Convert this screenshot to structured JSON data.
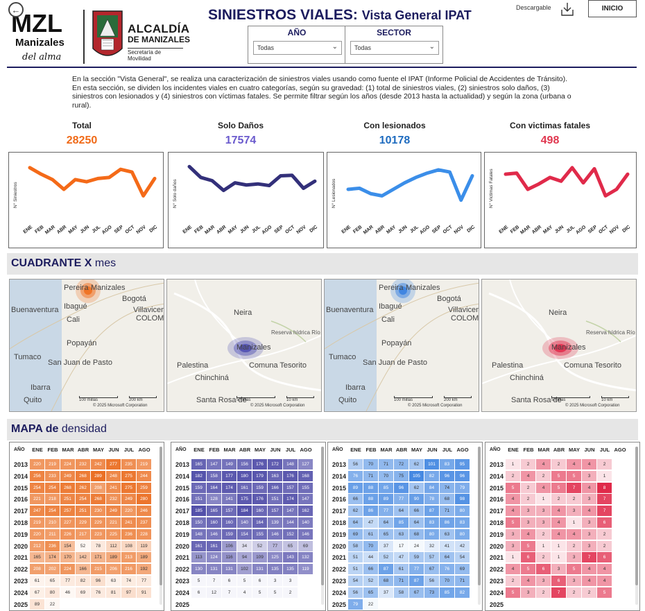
{
  "header": {
    "back_label": "←",
    "logo_mzl": "MZL",
    "logo_manizales": "Manizales",
    "logo_tagline": "del alma",
    "alcaldia_title": "ALCALDÍA",
    "alcaldia_city": "DE MANIZALES",
    "alcaldia_dept": "Secretaría de Movilidad",
    "title_main": "SINIESTROS VIALES:",
    "title_sub": "Vista General IPAT",
    "download_label": "Descargable",
    "inicio_label": "INICIO"
  },
  "filters": [
    {
      "label": "AÑO",
      "value": "Todas"
    },
    {
      "label": "SECTOR",
      "value": "Todas"
    }
  ],
  "description": "En la sección \"Vista General\", se realiza una caracterización de siniestros viales usando como fuente el IPAT (Informe Policial de Accidentes de Tránsito). En esta sección, se dividen los incidentes viales en cuatro categorías, según su gravedad: (1) total de siniestros viales, (2) siniestros solo daños, (3) siniestros con lesionados y (4) siniestros con víctimas fatales. Se permite filtrar según los años (desde 2013 hasta la actualidad) y según la zona (urbana o rural).",
  "kpis": [
    {
      "label": "Total",
      "value": "28250",
      "color": "#f06a17"
    },
    {
      "label": "Solo Daños",
      "value": "17574",
      "color": "#6a5acd"
    },
    {
      "label": "Con lesionados",
      "value": "10178",
      "color": "#1e6bbf"
    },
    {
      "label": "Con victimas fatales",
      "value": "498",
      "color": "#e0374f"
    }
  ],
  "months": [
    "ENE",
    "FEB",
    "MAR",
    "ABR",
    "MAY",
    "JUN",
    "JUL",
    "AGO",
    "SEP",
    "OCT",
    "NOV",
    "DIC"
  ],
  "line_charts": [
    {
      "ylabel": "N° Siniestros",
      "color": "#f46a18",
      "values": [
        0.9,
        0.78,
        0.68,
        0.5,
        0.68,
        0.64,
        0.7,
        0.72,
        0.87,
        0.82,
        0.38,
        0.7
      ]
    },
    {
      "ylabel": "N° Solo daños",
      "color": "#33307a",
      "values": [
        0.92,
        0.72,
        0.66,
        0.48,
        0.62,
        0.58,
        0.6,
        0.57,
        0.75,
        0.76,
        0.52,
        0.65
      ]
    },
    {
      "ylabel": "N° Lesionados",
      "color": "#3b8ee9",
      "values": [
        0.5,
        0.52,
        0.42,
        0.38,
        0.5,
        0.62,
        0.72,
        0.8,
        0.86,
        0.82,
        0.3,
        0.75
      ]
    },
    {
      "ylabel": "N° Victimas Fatales",
      "color": "#e02a4a",
      "values": [
        0.78,
        0.8,
        0.5,
        0.6,
        0.72,
        0.65,
        0.9,
        0.62,
        0.88,
        0.38,
        0.5,
        0.78
      ]
    }
  ],
  "sections": {
    "cuadrante_bold": "CUADRANTE X",
    "cuadrante_rest": "mes",
    "mapa_bold": "MAPA de",
    "mapa_rest": "densidad"
  },
  "maps": [
    {
      "kind": "region",
      "hotspot": "#f07020",
      "labels": [
        "Pereira",
        "Manizales",
        "Ibagué",
        "Bogotá",
        "Buenaventura",
        "Cali",
        "Villavicencio",
        "COLOMBIA",
        "Popayán",
        "Tumaco",
        "San Juan de Pasto",
        "Ibarra",
        "Quito"
      ],
      "scale1": "100 millas",
      "scale2": "200 km",
      "copyright": "© 2025 Microsoft Corporation"
    },
    {
      "kind": "city",
      "hotspot": "#4c4cb0",
      "labels": [
        "Neira",
        "Manizales",
        "Reserva hídrica Río Blanco",
        "Palestina",
        "Comuna Tesorito",
        "Chinchiná",
        "Santa Rosa de"
      ],
      "scale1": "5 millas",
      "scale2": "10 km",
      "copyright": "© 2025 Microsoft Corporation"
    },
    {
      "kind": "region",
      "hotspot": "#3b82e0",
      "labels": [
        "Pereira",
        "Manizales",
        "Ibagué",
        "Bogotá",
        "Buenaventura",
        "Cali",
        "Villavicencio",
        "COLOMBIA",
        "Popayán",
        "Tumaco",
        "San Juan de Pasto",
        "Ibarra",
        "Quito"
      ],
      "scale1": "100 millas",
      "scale2": "200 km",
      "copyright": "© 2025 Microsoft Corporation"
    },
    {
      "kind": "city",
      "hotspot": "#e02a4a",
      "labels": [
        "Neira",
        "Manizales",
        "Reserva hídrica Río Blanco",
        "Palestina",
        "Comuna Tesorito",
        "Chinchiná",
        "Santa Rosa de"
      ],
      "scale1": "5 millas",
      "scale2": "10 km",
      "copyright": "© 2025 Microsoft Corporation"
    }
  ],
  "heatmaps": [
    {
      "header_year": "AÑO",
      "cols": [
        "ENE",
        "FEB",
        "MAR",
        "ABR",
        "MAY",
        "JUN",
        "JUL",
        "AGO"
      ],
      "color": "#ea6a1b",
      "min": 40,
      "max": 300,
      "rows": [
        {
          "year": "2013",
          "values": [
            "220",
            "219",
            "224",
            "232",
            "242",
            "277",
            "235",
            "219"
          ]
        },
        {
          "year": "2014",
          "values": [
            "256",
            "233",
            "249",
            "268",
            "289",
            "248",
            "275",
            "244"
          ]
        },
        {
          "year": "2015",
          "values": [
            "254",
            "254",
            "268",
            "262",
            "208",
            "241",
            "275",
            "259"
          ]
        },
        {
          "year": "2016",
          "values": [
            "221",
            "218",
            "251",
            "254",
            "268",
            "232",
            "249",
            "280"
          ]
        },
        {
          "year": "2017",
          "values": [
            "247",
            "254",
            "257",
            "251",
            "230",
            "249",
            "220",
            "246"
          ]
        },
        {
          "year": "2018",
          "values": [
            "219",
            "210",
            "227",
            "229",
            "229",
            "221",
            "241",
            "237"
          ]
        },
        {
          "year": "2019",
          "values": [
            "220",
            "211",
            "226",
            "217",
            "223",
            "225",
            "236",
            "228"
          ]
        },
        {
          "year": "2020",
          "values": [
            "212",
            "236",
            "154",
            "52",
            "78",
            "112",
            "108",
            "119"
          ]
        },
        {
          "year": "2021",
          "values": [
            "165",
            "174",
            "170",
            "142",
            "171",
            "189",
            "213",
            "189"
          ]
        },
        {
          "year": "2022",
          "values": [
            "208",
            "202",
            "224",
            "166",
            "215",
            "206",
            "216",
            "192"
          ]
        },
        {
          "year": "2023",
          "values": [
            "61",
            "65",
            "77",
            "82",
            "96",
            "63",
            "74",
            "77"
          ]
        },
        {
          "year": "2024",
          "values": [
            "67",
            "80",
            "46",
            "69",
            "76",
            "81",
            "97",
            "91"
          ]
        },
        {
          "year": "2025",
          "values": [
            "89",
            "22",
            "",
            "",
            "",
            "",
            "",
            ""
          ]
        }
      ]
    },
    {
      "header_year": "AÑO",
      "cols": [
        "ENE",
        "FEB",
        "MAR",
        "ABR",
        "MAY",
        "JUN",
        "JUL",
        "AGO"
      ],
      "color": "#4f4ca8",
      "min": 0,
      "max": 190,
      "rows": [
        {
          "year": "2013",
          "values": [
            "165",
            "147",
            "149",
            "156",
            "176",
            "172",
            "148",
            "127"
          ]
        },
        {
          "year": "2014",
          "values": [
            "182",
            "158",
            "177",
            "180",
            "179",
            "163",
            "176",
            "168"
          ]
        },
        {
          "year": "2015",
          "values": [
            "159",
            "164",
            "174",
            "161",
            "159",
            "166",
            "157",
            "155"
          ]
        },
        {
          "year": "2016",
          "values": [
            "151",
            "128",
            "141",
            "175",
            "176",
            "151",
            "174",
            "147"
          ]
        },
        {
          "year": "2017",
          "values": [
            "185",
            "165",
            "157",
            "184",
            "160",
            "157",
            "147",
            "162"
          ]
        },
        {
          "year": "2018",
          "values": [
            "150",
            "160",
            "160",
            "140",
            "164",
            "139",
            "144",
            "140"
          ]
        },
        {
          "year": "2019",
          "values": [
            "148",
            "146",
            "159",
            "154",
            "155",
            "146",
            "152",
            "146"
          ]
        },
        {
          "year": "2020",
          "values": [
            "161",
            "161",
            "106",
            "34",
            "52",
            "77",
            "65",
            "69"
          ]
        },
        {
          "year": "2021",
          "values": [
            "113",
            "124",
            "116",
            "94",
            "109",
            "125",
            "143",
            "132"
          ]
        },
        {
          "year": "2022",
          "values": [
            "130",
            "131",
            "131",
            "102",
            "131",
            "135",
            "135",
            "119"
          ]
        },
        {
          "year": "2023",
          "values": [
            "5",
            "7",
            "6",
            "5",
            "6",
            "3",
            "3",
            ""
          ]
        },
        {
          "year": "2024",
          "values": [
            "6",
            "12",
            "7",
            "4",
            "5",
            "5",
            "2",
            ""
          ]
        },
        {
          "year": "2025",
          "values": [
            "",
            "",
            "",
            "",
            "",
            "",
            "",
            ""
          ]
        }
      ]
    },
    {
      "header_year": "AÑO",
      "cols": [
        "ENE",
        "FEB",
        "MAR",
        "ABR",
        "MAY",
        "JUN",
        "JUL",
        "AGO"
      ],
      "color": "#3b82e0",
      "min": 20,
      "max": 110,
      "rows": [
        {
          "year": "2013",
          "values": [
            "56",
            "70",
            "71",
            "72",
            "62",
            "101",
            "83",
            "95"
          ]
        },
        {
          "year": "2014",
          "values": [
            "76",
            "71",
            "70",
            "75",
            "105",
            "82",
            "96",
            "96"
          ]
        },
        {
          "year": "2015",
          "values": [
            "89",
            "88",
            "85",
            "96",
            "62",
            "84",
            "74",
            "79"
          ]
        },
        {
          "year": "2016",
          "values": [
            "66",
            "88",
            "89",
            "77",
            "90",
            "78",
            "68",
            "98"
          ]
        },
        {
          "year": "2017",
          "values": [
            "62",
            "86",
            "77",
            "64",
            "66",
            "87",
            "71",
            "80"
          ]
        },
        {
          "year": "2018",
          "values": [
            "64",
            "47",
            "64",
            "85",
            "64",
            "83",
            "86",
            "83"
          ]
        },
        {
          "year": "2019",
          "values": [
            "69",
            "61",
            "65",
            "63",
            "68",
            "80",
            "63",
            "80"
          ]
        },
        {
          "year": "2020",
          "values": [
            "58",
            "70",
            "37",
            "17",
            "24",
            "32",
            "41",
            "42"
          ]
        },
        {
          "year": "2021",
          "values": [
            "51",
            "44",
            "52",
            "47",
            "59",
            "57",
            "64",
            "54"
          ]
        },
        {
          "year": "2022",
          "values": [
            "51",
            "66",
            "87",
            "61",
            "77",
            "67",
            "76",
            "69"
          ]
        },
        {
          "year": "2023",
          "values": [
            "54",
            "52",
            "68",
            "71",
            "87",
            "56",
            "70",
            "71"
          ]
        },
        {
          "year": "2024",
          "values": [
            "56",
            "65",
            "37",
            "58",
            "67",
            "73",
            "85",
            "82"
          ]
        },
        {
          "year": "2025",
          "values": [
            "79",
            "22",
            "",
            "",
            "",
            "",
            "",
            ""
          ]
        }
      ]
    },
    {
      "header_year": "AÑO",
      "cols": [
        "ENE",
        "FEB",
        "MAR",
        "ABR",
        "MAY",
        "JUN",
        "JUL",
        "AGO"
      ],
      "color": "#e02a4a",
      "min": 0,
      "max": 8,
      "rows": [
        {
          "year": "2013",
          "values": [
            "1",
            "2",
            "4",
            "2",
            "4",
            "4",
            "2",
            ""
          ]
        },
        {
          "year": "2014",
          "values": [
            "2",
            "4",
            "2",
            "5",
            "5",
            "3",
            "1",
            ""
          ]
        },
        {
          "year": "2015",
          "values": [
            "5",
            "2",
            "4",
            "5",
            "7",
            "4",
            "8",
            ""
          ]
        },
        {
          "year": "2016",
          "values": [
            "4",
            "2",
            "1",
            "2",
            "2",
            "3",
            "7",
            ""
          ]
        },
        {
          "year": "2017",
          "values": [
            "4",
            "3",
            "3",
            "4",
            "3",
            "4",
            "7",
            ""
          ]
        },
        {
          "year": "2018",
          "values": [
            "5",
            "3",
            "3",
            "4",
            "1",
            "3",
            "6",
            ""
          ]
        },
        {
          "year": "2019",
          "values": [
            "3",
            "4",
            "2",
            "4",
            "4",
            "3",
            "2",
            ""
          ]
        },
        {
          "year": "2020",
          "values": [
            "3",
            "5",
            "1",
            "1",
            "2",
            "3",
            "2",
            ""
          ]
        },
        {
          "year": "2021",
          "values": [
            "1",
            "6",
            "2",
            "1",
            "3",
            "7",
            "6",
            ""
          ]
        },
        {
          "year": "2022",
          "values": [
            "4",
            "5",
            "6",
            "3",
            "5",
            "4",
            "4",
            ""
          ]
        },
        {
          "year": "2023",
          "values": [
            "2",
            "4",
            "3",
            "6",
            "3",
            "4",
            "4",
            ""
          ]
        },
        {
          "year": "2024",
          "values": [
            "5",
            "3",
            "2",
            "7",
            "2",
            "2",
            "5",
            ""
          ]
        },
        {
          "year": "2025",
          "values": [
            "",
            "",
            "",
            "",
            "",
            "",
            "",
            ""
          ]
        }
      ]
    }
  ]
}
